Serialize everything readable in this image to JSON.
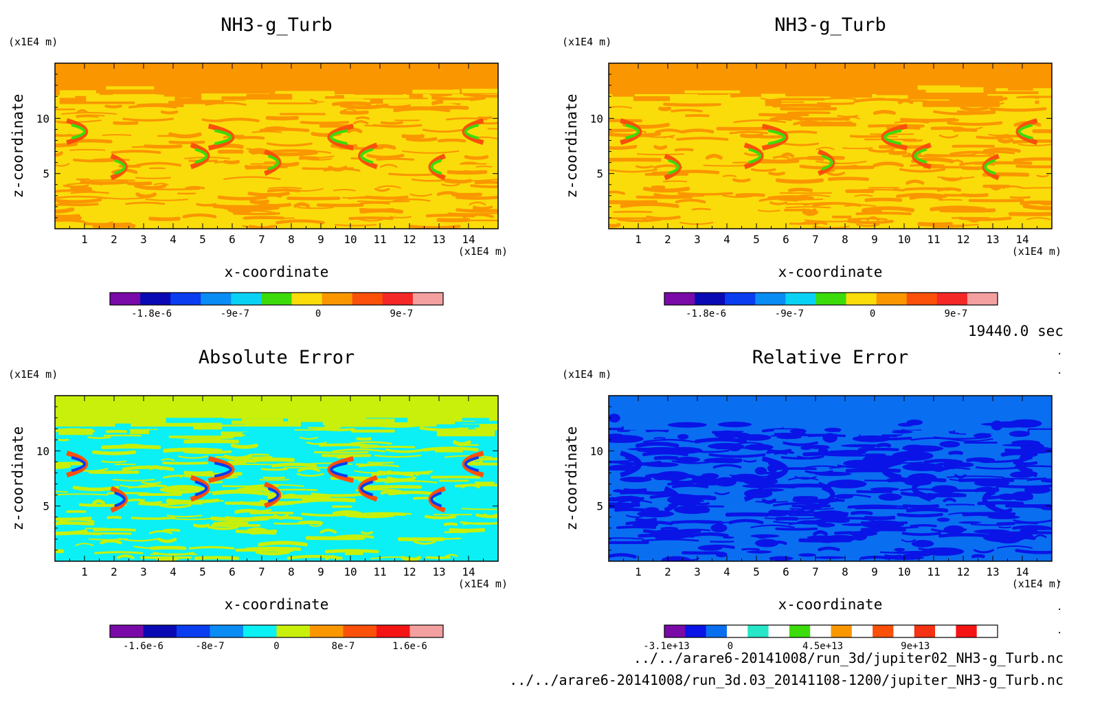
{
  "time_label": "19440.0 sec",
  "footer": {
    "file1": "../../arare6-20141008/run_3d/jupiter02_NH3-g_Turb.nc",
    "file2": "../../arare6-20141008/run_3d.03_20141108-1200/jupiter_NH3-g_Turb.nc"
  },
  "chart_data": [
    {
      "type": "heatmap",
      "title": "NH3-g_Turb",
      "xlabel": "x-coordinate",
      "ylabel": "z-coordinate",
      "x_unit": "(x1E4 m)",
      "y_unit": "(x1E4 m)",
      "xlim": [
        0,
        15
      ],
      "ylim": [
        0,
        15
      ],
      "x_ticks": [
        1,
        2,
        3,
        4,
        5,
        6,
        7,
        8,
        9,
        10,
        11,
        12,
        13,
        14
      ],
      "y_ticks": [
        5,
        10
      ],
      "colorbar": {
        "colors": [
          "#7a0aa8",
          "#0a0ab4",
          "#0a3cf0",
          "#0a8cf5",
          "#0ad2f5",
          "#3cdc0a",
          "#fadc0a",
          "#fa9600",
          "#fa500a",
          "#f52828",
          "#f5a0a0"
        ],
        "tick_labels": [
          "-1.8e-6",
          "-9e-7",
          "0",
          "9e-7"
        ],
        "tick_values": [
          -1.8e-06,
          -9e-07,
          0,
          9e-07
        ],
        "min": -2.25e-06,
        "max": 1.35e-06
      },
      "field_levels": [
        {
          "name": "background-top",
          "color": "#fa9600"
        },
        {
          "name": "main",
          "color": "#fadc0a"
        },
        {
          "name": "streaks",
          "color": "#fa9600"
        },
        {
          "name": "features",
          "color": "#fa500a"
        },
        {
          "name": "features-low",
          "color": "#3cdc0a"
        }
      ]
    },
    {
      "type": "heatmap",
      "title": "NH3-g_Turb",
      "xlabel": "x-coordinate",
      "ylabel": "z-coordinate",
      "x_unit": "(x1E4 m)",
      "y_unit": "(x1E4 m)",
      "xlim": [
        0,
        15
      ],
      "ylim": [
        0,
        15
      ],
      "x_ticks": [
        1,
        2,
        3,
        4,
        5,
        6,
        7,
        8,
        9,
        10,
        11,
        12,
        13,
        14
      ],
      "y_ticks": [
        5,
        10
      ],
      "colorbar": {
        "colors": [
          "#7a0aa8",
          "#0a0ab4",
          "#0a3cf0",
          "#0a8cf5",
          "#0ad2f5",
          "#3cdc0a",
          "#fadc0a",
          "#fa9600",
          "#fa500a",
          "#f52828",
          "#f5a0a0"
        ],
        "tick_labels": [
          "-1.8e-6",
          "-9e-7",
          "0",
          "9e-7"
        ],
        "tick_values": [
          -1.8e-06,
          -9e-07,
          0,
          9e-07
        ],
        "min": -2.25e-06,
        "max": 1.35e-06
      },
      "field_levels": [
        {
          "name": "background-top",
          "color": "#fa9600"
        },
        {
          "name": "main",
          "color": "#fadc0a"
        },
        {
          "name": "streaks",
          "color": "#fa9600"
        },
        {
          "name": "features",
          "color": "#fa500a"
        },
        {
          "name": "features-low",
          "color": "#3cdc0a"
        }
      ]
    },
    {
      "type": "heatmap",
      "title": "Absolute Error",
      "xlabel": "x-coordinate",
      "ylabel": "z-coordinate",
      "x_unit": "(x1E4 m)",
      "y_unit": "(x1E4 m)",
      "xlim": [
        0,
        15
      ],
      "ylim": [
        0,
        15
      ],
      "x_ticks": [
        1,
        2,
        3,
        4,
        5,
        6,
        7,
        8,
        9,
        10,
        11,
        12,
        13,
        14
      ],
      "y_ticks": [
        5,
        10
      ],
      "colorbar": {
        "colors": [
          "#7a0aa8",
          "#0a0ab4",
          "#0a3cf0",
          "#0a8cf5",
          "#0af0f5",
          "#c8f00a",
          "#fa9600",
          "#fa500a",
          "#f51414",
          "#f5a0a0"
        ],
        "tick_labels": [
          "-1.6e-6",
          "-8e-7",
          "0",
          "8e-7",
          "1.6e-6"
        ],
        "tick_values": [
          -1.6e-06,
          -8e-07,
          0,
          8e-07,
          1.6e-06
        ],
        "min": -2e-06,
        "max": 2e-06
      },
      "field_levels": [
        {
          "name": "background-top",
          "color": "#c8f00a"
        },
        {
          "name": "main",
          "color": "#0af0f5"
        },
        {
          "name": "streaks",
          "color": "#c8f00a"
        },
        {
          "name": "features",
          "color": "#fa500a"
        },
        {
          "name": "features-low",
          "color": "#0a3cf0"
        }
      ]
    },
    {
      "type": "heatmap",
      "title": "Relative Error",
      "xlabel": "x-coordinate",
      "ylabel": "z-coordinate",
      "x_unit": "(x1E4 m)",
      "y_unit": "(x1E4 m)",
      "xlim": [
        0,
        15
      ],
      "ylim": [
        0,
        15
      ],
      "x_ticks": [
        1,
        2,
        3,
        4,
        5,
        6,
        7,
        8,
        9,
        10,
        11,
        12,
        13,
        14
      ],
      "y_ticks": [
        5,
        10
      ],
      "colorbar": {
        "colors": [
          "#7a0aa8",
          "#0a14e6",
          "#0a6ef0",
          "#ffffff",
          "#28e6c8",
          "#ffffff",
          "#3cdc0a",
          "#ffffff",
          "#fa9600",
          "#ffffff",
          "#fa500a",
          "#ffffff",
          "#f53214",
          "#ffffff",
          "#f51414",
          "#ffffff"
        ],
        "tick_labels": [
          "-3.1e+13",
          "0",
          "4.5e+13",
          "9e+13"
        ],
        "tick_values": [
          -31000000000000.0,
          0,
          45000000000000.0,
          90000000000000.0
        ],
        "min": -32000000000000.0,
        "max": 130000000000000.0
      },
      "field_levels": [
        {
          "name": "background-top",
          "color": "#0a6ef0"
        },
        {
          "name": "main",
          "color": "#0a6ef0"
        },
        {
          "name": "streaks",
          "color": "#0a14e6"
        },
        {
          "name": "features",
          "color": "#0a14e6"
        },
        {
          "name": "features-low",
          "color": "#0a14e6"
        }
      ]
    }
  ]
}
